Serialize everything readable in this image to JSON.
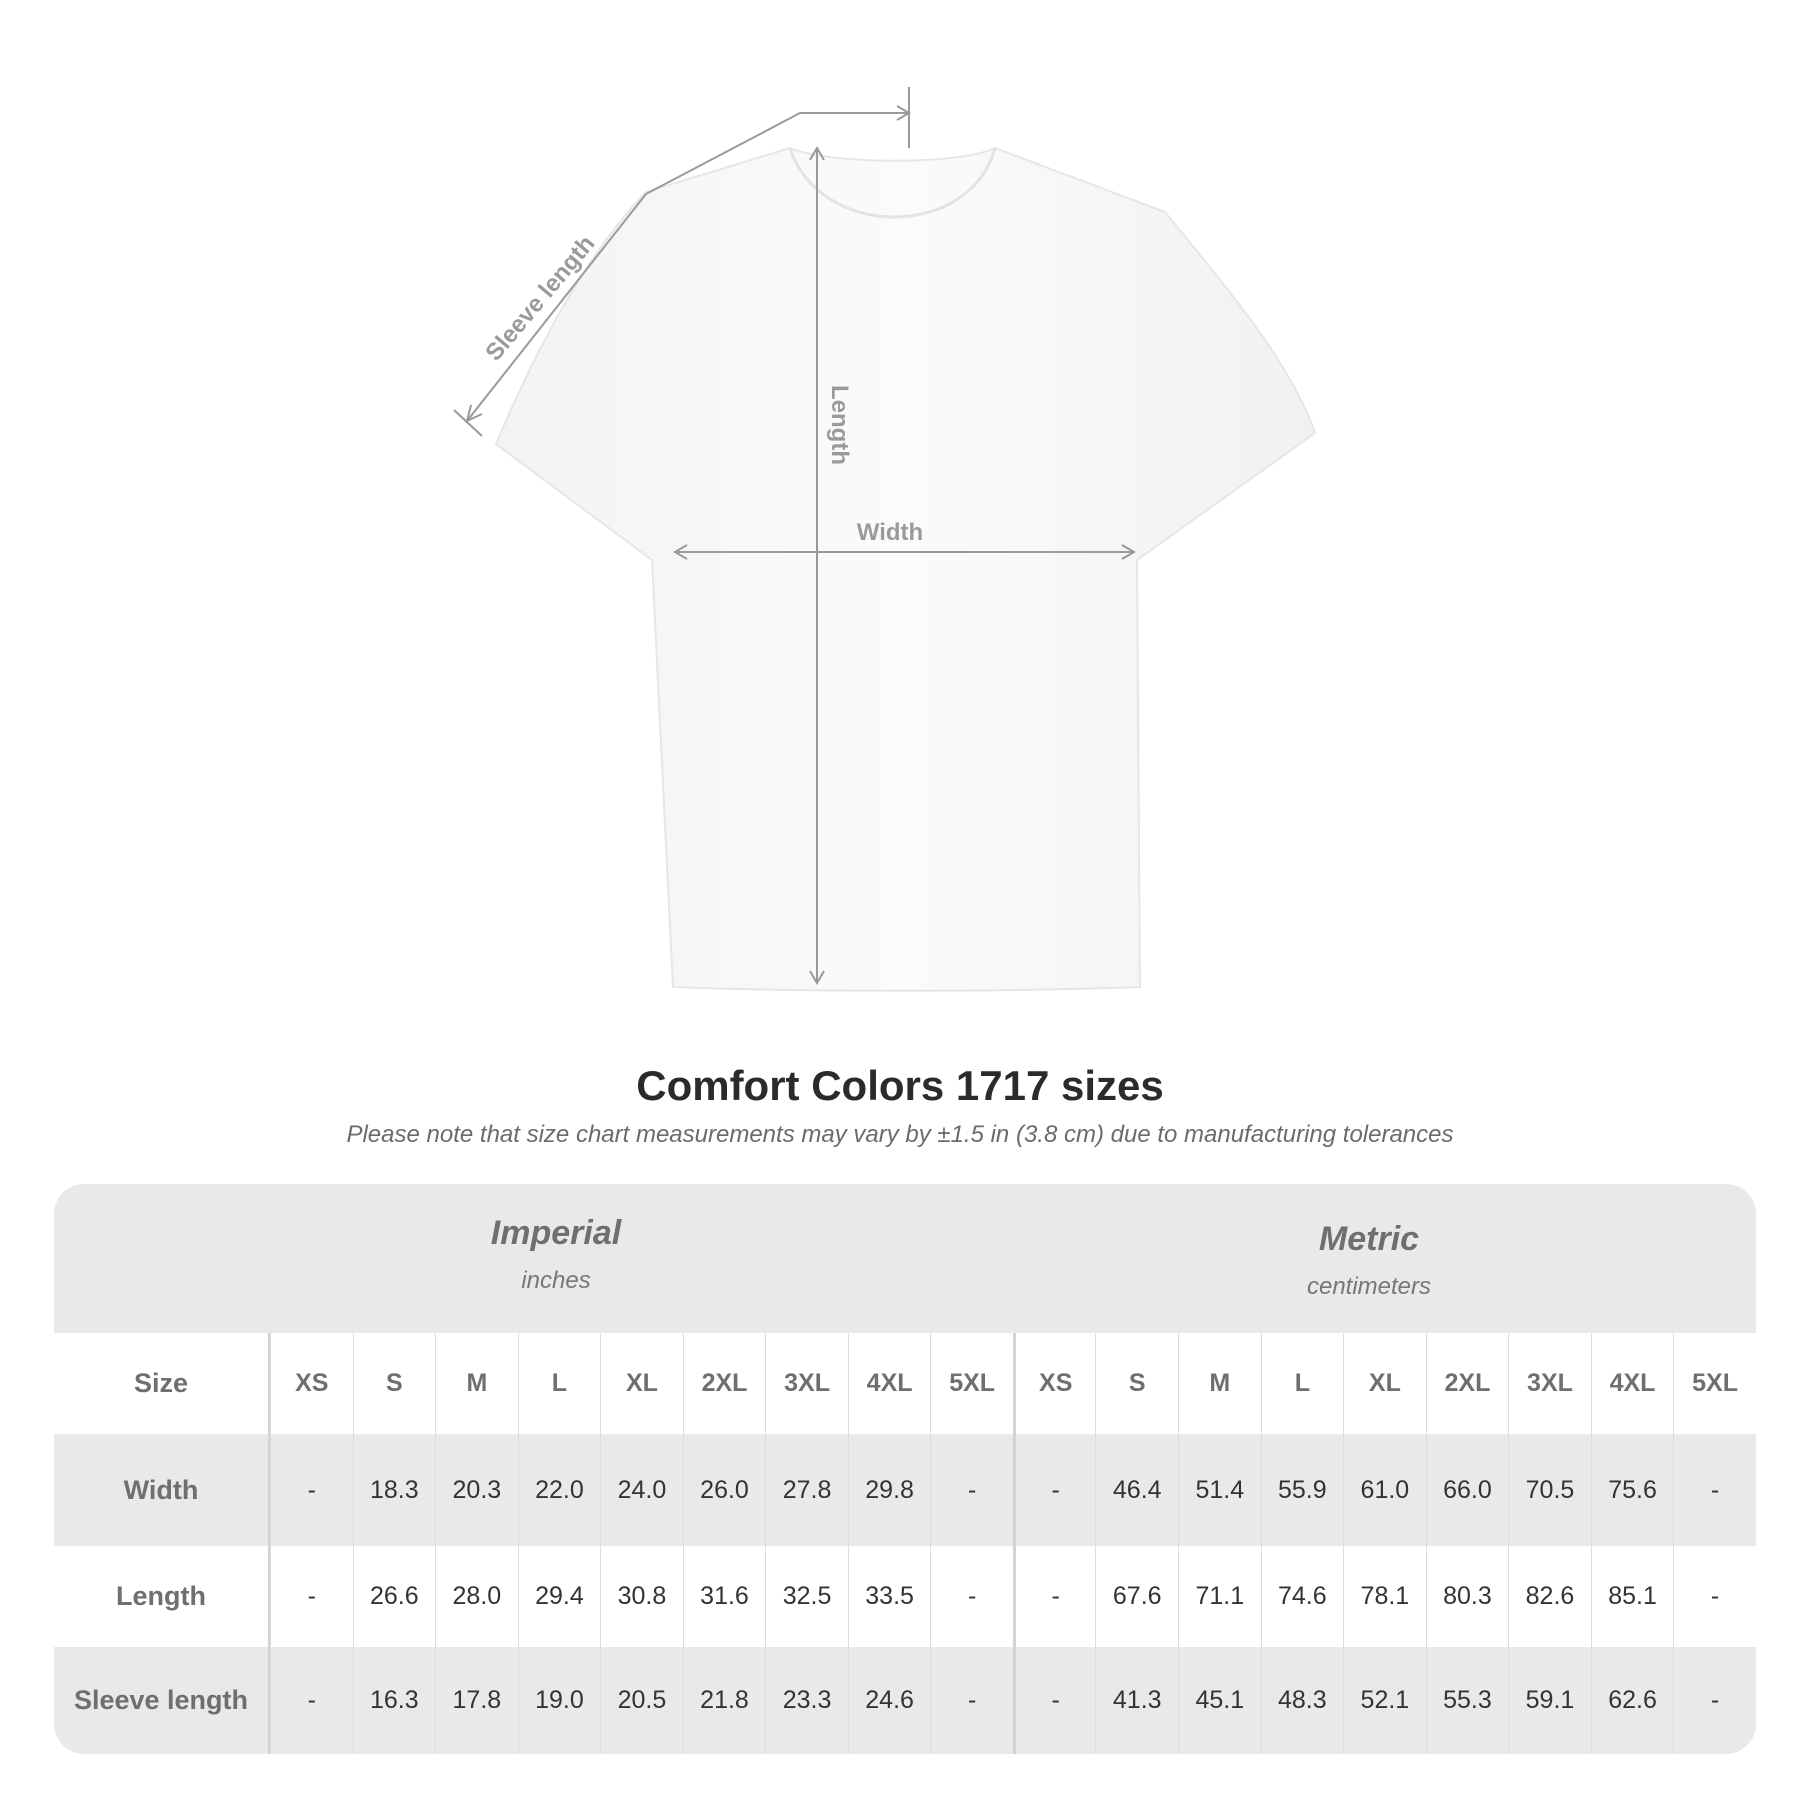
{
  "diagram": {
    "labels": {
      "sleeve": "Sleeve length",
      "length": "Length",
      "width": "Width"
    },
    "line_color": "#9a9a9a"
  },
  "title": "Comfort Colors 1717 sizes",
  "note": "Please note that size chart measurements may vary by ±1.5 in (3.8 cm) due to manufacturing tolerances",
  "table": {
    "imperial": {
      "name": "Imperial",
      "unit": "inches"
    },
    "metric": {
      "name": "Metric",
      "unit": "centimeters"
    },
    "size_label": "Size",
    "sizes": [
      "XS",
      "S",
      "M",
      "L",
      "XL",
      "2XL",
      "3XL",
      "4XL",
      "5XL"
    ],
    "rows": [
      {
        "label": "Width",
        "imperial": [
          "-",
          "18.3",
          "20.3",
          "22.0",
          "24.0",
          "26.0",
          "27.8",
          "29.8",
          "-"
        ],
        "metric": [
          "-",
          "46.4",
          "51.4",
          "55.9",
          "61.0",
          "66.0",
          "70.5",
          "75.6",
          "-"
        ]
      },
      {
        "label": "Length",
        "imperial": [
          "-",
          "26.6",
          "28.0",
          "29.4",
          "30.8",
          "31.6",
          "32.5",
          "33.5",
          "-"
        ],
        "metric": [
          "-",
          "67.6",
          "71.1",
          "74.6",
          "78.1",
          "80.3",
          "82.6",
          "85.1",
          "-"
        ]
      },
      {
        "label": "Sleeve length",
        "imperial": [
          "-",
          "16.3",
          "17.8",
          "19.0",
          "20.5",
          "21.8",
          "23.3",
          "24.6",
          "-"
        ],
        "metric": [
          "-",
          "41.3",
          "45.1",
          "48.3",
          "52.1",
          "55.3",
          "59.1",
          "62.6",
          "-"
        ]
      }
    ]
  }
}
